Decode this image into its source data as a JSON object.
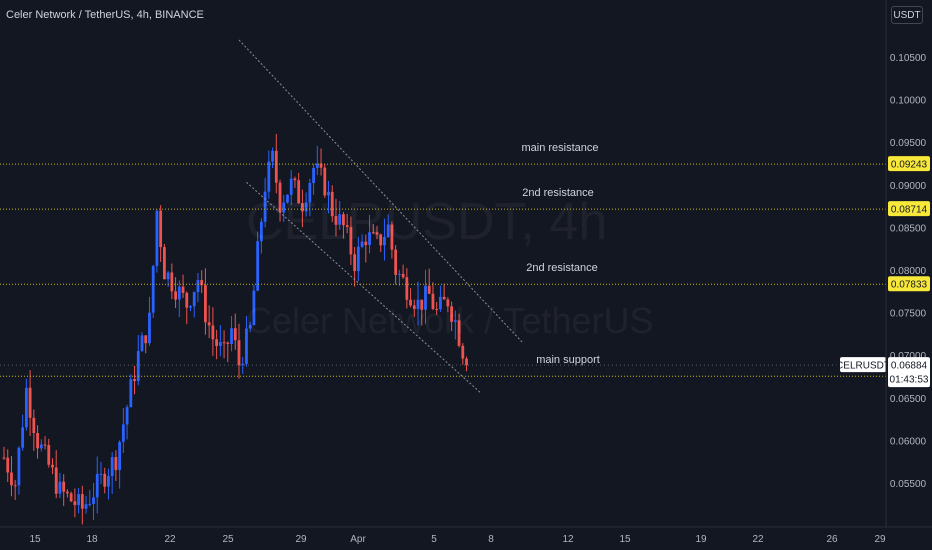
{
  "header": {
    "title": "Celer Network / TetherUS, 4h, BINANCE",
    "currency": "USDT"
  },
  "watermark": {
    "symbol": "CELRUSDT, 4h",
    "name": "Celer Network / TetherUS"
  },
  "colors": {
    "background": "#131722",
    "up": "#2962ff",
    "down": "#ef5350",
    "level_line": "#c9b51b",
    "level_label_bg": "#f7e83a",
    "trend_line": "#8a8e99",
    "text": "#d1d4dc"
  },
  "price_axis": {
    "ticks": [
      "0.10500",
      "0.10000",
      "0.09500",
      "0.09000",
      "0.08500",
      "0.08000",
      "0.07500",
      "0.07000",
      "0.06500",
      "0.06000",
      "0.05500"
    ]
  },
  "time_axis": {
    "ticks": [
      "15",
      "18",
      "22",
      "25",
      "29",
      "Apr",
      "5",
      "8",
      "12",
      "15",
      "19",
      "22",
      "26",
      "29"
    ]
  },
  "current_price": {
    "symbol": "CELRUSDT",
    "price": "0.06884",
    "countdown": "01:43:53"
  },
  "chart_data": {
    "type": "candlestick",
    "title": "Celer Network / TetherUS, 4h, BINANCE",
    "ylim": [
      0.0515,
      0.1075
    ],
    "levels": [
      {
        "label": "main resistance",
        "value": 0.09243
      },
      {
        "label": "2nd resistance",
        "value": 0.08714
      },
      {
        "label": "2nd resistance",
        "value": 0.07833
      },
      {
        "label": "main support",
        "value": 0.06753
      }
    ],
    "channel": [
      {
        "from": {
          "bar": 63,
          "price": 0.107
        },
        "to": {
          "bar": 139,
          "price": 0.0715
        }
      },
      {
        "from": {
          "bar": 65,
          "price": 0.0903
        },
        "to": {
          "bar": 128,
          "price": 0.0655
        }
      }
    ],
    "waypoints": [
      [
        0,
        0.058
      ],
      [
        3,
        0.055
      ],
      [
        6,
        0.066
      ],
      [
        9,
        0.06
      ],
      [
        12,
        0.057
      ],
      [
        15,
        0.054
      ],
      [
        18,
        0.053
      ],
      [
        21,
        0.052
      ],
      [
        24,
        0.054
      ],
      [
        27,
        0.056
      ],
      [
        30,
        0.058
      ],
      [
        33,
        0.064
      ],
      [
        36,
        0.07
      ],
      [
        39,
        0.074
      ],
      [
        41,
        0.087
      ],
      [
        43,
        0.08
      ],
      [
        46,
        0.078
      ],
      [
        49,
        0.076
      ],
      [
        52,
        0.079
      ],
      [
        54,
        0.075
      ],
      [
        56,
        0.072
      ],
      [
        59,
        0.07
      ],
      [
        61,
        0.073
      ],
      [
        63,
        0.069
      ],
      [
        66,
        0.073
      ],
      [
        68,
        0.082
      ],
      [
        70,
        0.09
      ],
      [
        72,
        0.093
      ],
      [
        74,
        0.088
      ],
      [
        77,
        0.09
      ],
      [
        80,
        0.088
      ],
      [
        83,
        0.092
      ],
      [
        86,
        0.09
      ],
      [
        88,
        0.087
      ],
      [
        91,
        0.085
      ],
      [
        94,
        0.081
      ],
      [
        97,
        0.084
      ],
      [
        100,
        0.083
      ],
      [
        103,
        0.085
      ],
      [
        105,
        0.08
      ],
      [
        108,
        0.078
      ],
      [
        111,
        0.076
      ],
      [
        114,
        0.077
      ],
      [
        116,
        0.075
      ],
      [
        119,
        0.0765
      ],
      [
        121,
        0.074
      ],
      [
        124,
        0.069
      ]
    ]
  }
}
